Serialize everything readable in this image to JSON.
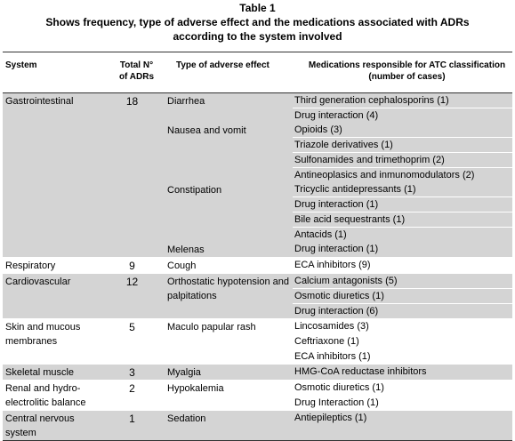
{
  "caption": {
    "label": "Table 1",
    "line1": "Shows frequency, type of adverse effect and the medications associated with ADRs",
    "line2": "according to the system involved"
  },
  "headers": {
    "system": "System",
    "total_l1": "Total N°",
    "total_l2": "of ADRs",
    "effect": "Type of adverse effect",
    "meds_l1": "Medications responsible for ATC classification",
    "meds_l2": "(number of cases)"
  },
  "groups": [
    {
      "system": "Gastrointestinal",
      "total": "18",
      "shade": true,
      "effects": [
        {
          "name": "Diarrhea",
          "meds": [
            "Third generation cephalosporins (1)",
            "Drug interaction (4)"
          ]
        },
        {
          "name": "Nausea and vomit",
          "meds": [
            "Opioids (3)",
            "Triazole derivatives (1)",
            "Sulfonamides and trimethoprim (2)",
            "Antineoplasics and inmunomodulators (2)"
          ]
        },
        {
          "name": "Constipation",
          "meds": [
            "Tricyclic antidepressants (1)",
            "Drug interaction (1)",
            "Bile acid sequestrants (1)",
            "Antacids (1)"
          ]
        },
        {
          "name": "Melenas",
          "meds": [
            "Drug interaction (1)"
          ]
        }
      ]
    },
    {
      "system": "Respiratory",
      "total": "9",
      "shade": false,
      "effects": [
        {
          "name": "Cough",
          "meds": [
            "ECA inhibitors (9)"
          ]
        }
      ]
    },
    {
      "system": "Cardiovascular",
      "total": "12",
      "shade": true,
      "effects": [
        {
          "name": "Orthostatic hypotension and palpitations",
          "meds": [
            "Calcium antagonists (5)",
            "Osmotic diuretics (1)",
            "Drug interaction (6)"
          ]
        }
      ]
    },
    {
      "system": "Skin and mucous membranes",
      "total": "5",
      "shade": false,
      "effects": [
        {
          "name": "Maculo papular rash",
          "meds": [
            "Lincosamides (3)",
            "Ceftriaxone (1)",
            "ECA inhibitors (1)"
          ]
        }
      ]
    },
    {
      "system": "Skeletal muscle",
      "total": "3",
      "shade": true,
      "effects": [
        {
          "name": "Myalgia",
          "meds": [
            "HMG-CoA reductase inhibitors"
          ]
        }
      ]
    },
    {
      "system": "Renal and hydro-electrolitic balance",
      "total": "2",
      "shade": false,
      "effects": [
        {
          "name": "Hypokalemia",
          "meds": [
            "Osmotic diuretics (1)",
            "Drug Interaction (1)"
          ]
        }
      ]
    },
    {
      "system": "Central nervous system",
      "total": "1",
      "shade": true,
      "effects": [
        {
          "name": "Sedation",
          "meds": [
            "Antiepileptics (1)"
          ]
        }
      ]
    }
  ]
}
